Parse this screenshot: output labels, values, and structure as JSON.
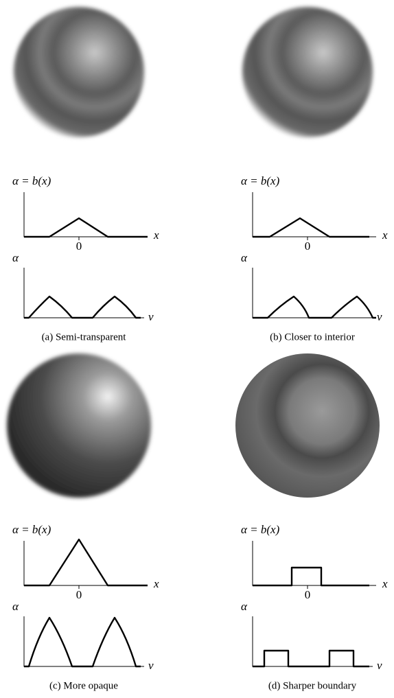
{
  "panels": [
    {
      "caption": "(a) Semi-transparent",
      "top_label": "α = b(x)",
      "x_label": "x",
      "zero": "0",
      "bottom_label": "α",
      "v_label": "v"
    },
    {
      "caption": "(b) Closer to interior",
      "top_label": "α = b(x)",
      "x_label": "x",
      "zero": "0",
      "bottom_label": "α",
      "v_label": "v"
    },
    {
      "caption": "(c) More opaque",
      "top_label": "α = b(x)",
      "x_label": "x",
      "zero": "0",
      "bottom_label": "α",
      "v_label": "v"
    },
    {
      "caption": "(d) Sharper boundary",
      "top_label": "α = b(x)",
      "x_label": "x",
      "zero": "0",
      "bottom_label": "α",
      "v_label": "v"
    }
  ]
}
